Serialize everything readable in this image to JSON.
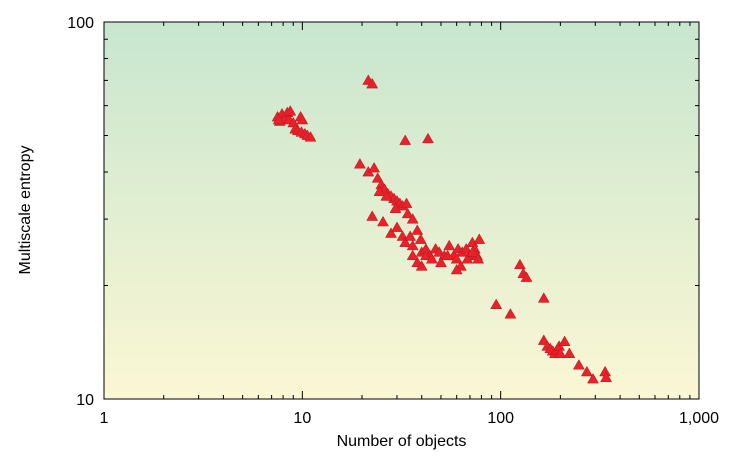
{
  "chart_data": {
    "type": "scatter",
    "title": "",
    "xlabel": "Number of objects",
    "ylabel": "Multiscale entropy",
    "x_scale": "log",
    "y_scale": "log",
    "xlim": [
      1,
      1000
    ],
    "ylim": [
      10,
      100
    ],
    "x_ticks": [
      {
        "value": 1,
        "label": "1"
      },
      {
        "value": 10,
        "label": "10"
      },
      {
        "value": 100,
        "label": "100"
      },
      {
        "value": 1000,
        "label": "1,000"
      }
    ],
    "y_ticks": [
      {
        "value": 10,
        "label": "10"
      },
      {
        "value": 100,
        "label": "100"
      }
    ],
    "grid": false,
    "legend": "none",
    "background_gradient": {
      "top": "#c8e6cf",
      "bottom": "#fbf7d4"
    },
    "marker": {
      "shape": "triangle",
      "color": "#e8212a"
    },
    "series": [
      {
        "points": [
          [
            7.5,
            56
          ],
          [
            7.7,
            54.5
          ],
          [
            7.9,
            57
          ],
          [
            8.1,
            55.5
          ],
          [
            8.4,
            57.5
          ],
          [
            8.7,
            58
          ],
          [
            8.6,
            55
          ],
          [
            9.0,
            54
          ],
          [
            9.2,
            52
          ],
          [
            9.5,
            51.5
          ],
          [
            9.8,
            56
          ],
          [
            10.0,
            55
          ],
          [
            9.9,
            51
          ],
          [
            10.3,
            50.5
          ],
          [
            10.6,
            50
          ],
          [
            11.0,
            49.5
          ],
          [
            7.6,
            55
          ],
          [
            21.5,
            70
          ],
          [
            22.5,
            68.5
          ],
          [
            33,
            48.5
          ],
          [
            43,
            49
          ],
          [
            19.5,
            42
          ],
          [
            21.5,
            40
          ],
          [
            23,
            41
          ],
          [
            24,
            38.5
          ],
          [
            25,
            37
          ],
          [
            26,
            36
          ],
          [
            27,
            35
          ],
          [
            28,
            34.5
          ],
          [
            29,
            34
          ],
          [
            30,
            33.5
          ],
          [
            31,
            33
          ],
          [
            32,
            32.5
          ],
          [
            34,
            31
          ],
          [
            36,
            30
          ],
          [
            24.5,
            35.5
          ],
          [
            26.5,
            34.5
          ],
          [
            29.5,
            32
          ],
          [
            33.5,
            33
          ],
          [
            22.5,
            30.5
          ],
          [
            25.5,
            29.5
          ],
          [
            28,
            27.5
          ],
          [
            30,
            28.5
          ],
          [
            32,
            27
          ],
          [
            33,
            26
          ],
          [
            35,
            27
          ],
          [
            36,
            25.5
          ],
          [
            38,
            28
          ],
          [
            39.5,
            26.5
          ],
          [
            40,
            24.5
          ],
          [
            42,
            25
          ],
          [
            44,
            24
          ],
          [
            47,
            25
          ],
          [
            49,
            24.5
          ],
          [
            52,
            24
          ],
          [
            55,
            25.5
          ],
          [
            58,
            24
          ],
          [
            61,
            25
          ],
          [
            64,
            24.5
          ],
          [
            67,
            25
          ],
          [
            70,
            24
          ],
          [
            72,
            26
          ],
          [
            74,
            25
          ],
          [
            76,
            24
          ],
          [
            78,
            26.5
          ],
          [
            38,
            23
          ],
          [
            40,
            22.5
          ],
          [
            42,
            24
          ],
          [
            45,
            23.5
          ],
          [
            50,
            23
          ],
          [
            54,
            24
          ],
          [
            60,
            23.5
          ],
          [
            63,
            22.5
          ],
          [
            68,
            23.5
          ],
          [
            72,
            24.5
          ],
          [
            77,
            23.5
          ],
          [
            36,
            24
          ],
          [
            60,
            22
          ],
          [
            95,
            17.8
          ],
          [
            112,
            16.8
          ],
          [
            125,
            22.7
          ],
          [
            130,
            21.5
          ],
          [
            135,
            21
          ],
          [
            165,
            18.5
          ],
          [
            165,
            14.3
          ],
          [
            172,
            13.8
          ],
          [
            178,
            13.6
          ],
          [
            183,
            13.4
          ],
          [
            188,
            13.2
          ],
          [
            192,
            13.5
          ],
          [
            197,
            13.8
          ],
          [
            200,
            13.2
          ],
          [
            210,
            14.2
          ],
          [
            222,
            13.2
          ],
          [
            248,
            12.3
          ],
          [
            272,
            11.8
          ],
          [
            292,
            11.3
          ],
          [
            336,
            11.8
          ],
          [
            340,
            11.4
          ]
        ]
      }
    ]
  }
}
